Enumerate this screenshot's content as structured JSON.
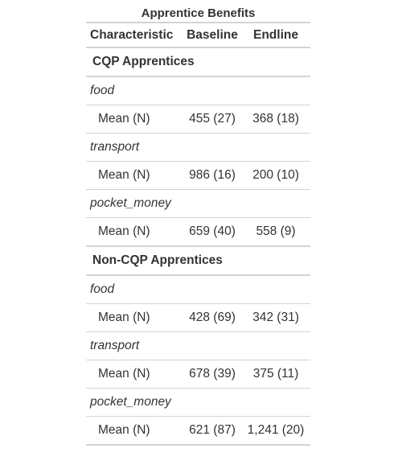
{
  "table": {
    "title": "Apprentice Benefits",
    "columns": [
      "Characteristic",
      "Baseline",
      "Endline"
    ],
    "groups": [
      {
        "name": "CQP Apprentices",
        "variables": [
          {
            "name": "food",
            "stat_label": "Mean (N)",
            "baseline": "455 (27)",
            "endline": "368 (18)"
          },
          {
            "name": "transport",
            "stat_label": "Mean (N)",
            "baseline": "986 (16)",
            "endline": "200 (10)"
          },
          {
            "name": "pocket_money",
            "stat_label": "Mean (N)",
            "baseline": "659 (40)",
            "endline": "558 (9)"
          }
        ]
      },
      {
        "name": "Non-CQP Apprentices",
        "variables": [
          {
            "name": "food",
            "stat_label": "Mean (N)",
            "baseline": "428 (69)",
            "endline": "342 (31)"
          },
          {
            "name": "transport",
            "stat_label": "Mean (N)",
            "baseline": "678 (39)",
            "endline": "375 (11)"
          },
          {
            "name": "pocket_money",
            "stat_label": "Mean (N)",
            "baseline": "621 (87)",
            "endline": "1,241 (20)"
          }
        ]
      }
    ]
  }
}
